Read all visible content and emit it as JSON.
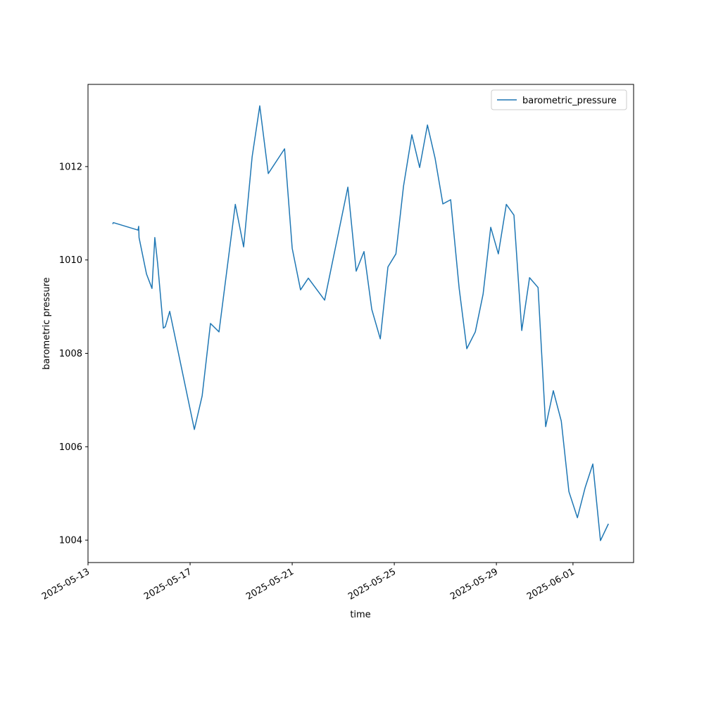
{
  "chart_data": {
    "type": "line",
    "xlabel": "time",
    "ylabel": "barometric pressure",
    "legend": "upper right",
    "grid": false,
    "x": [
      "2025-05-13 23:10",
      "2025-05-13 23:50",
      "2025-05-14 23:00",
      "2025-05-14 23:40",
      "2025-05-15 00:00",
      "2025-05-15 07:00",
      "2025-05-15 12:10",
      "2025-05-15 14:50",
      "2025-05-15 17:30",
      "2025-05-15 22:50",
      "2025-05-16 00:40",
      "2025-05-16 04:50",
      "2025-05-17 04:00",
      "2025-05-17 11:20",
      "2025-05-17 19:10",
      "2025-05-18 03:10",
      "2025-05-18 18:30",
      "2025-05-19 02:20",
      "2025-05-19 10:20",
      "2025-05-19 17:30",
      "2025-05-20 01:30",
      "2025-05-20 16:50",
      "2025-05-21 00:00",
      "2025-05-21 07:50",
      "2025-05-21 15:10",
      "2025-05-22 06:30",
      "2025-05-23 04:20",
      "2025-05-23 12:10",
      "2025-05-23 19:30",
      "2025-05-24 02:50",
      "2025-05-24 10:50",
      "2025-05-24 18:00",
      "2025-05-25 01:30",
      "2025-05-25 08:40",
      "2025-05-25 16:30",
      "2025-05-25 23:50",
      "2025-05-26 07:10",
      "2025-05-26 14:20",
      "2025-05-26 21:40",
      "2025-05-27 05:00",
      "2025-05-27 13:00",
      "2025-05-27 20:10",
      "2025-05-28 04:10",
      "2025-05-28 11:30",
      "2025-05-28 18:40",
      "2025-05-29 01:50",
      "2025-05-29 09:20",
      "2025-05-29 16:30",
      "2025-05-29 23:50",
      "2025-05-30 07:10",
      "2025-05-30 15:10",
      "2025-05-30 22:20",
      "2025-05-31 05:30",
      "2025-05-31 13:00",
      "2025-05-31 20:10",
      "2025-06-01 04:10",
      "2025-06-01 11:30",
      "2025-06-01 18:40",
      "2025-06-02 01:50",
      "2025-06-02 09:20"
    ],
    "series": [
      {
        "name": "barometric_pressure",
        "color": "#1f77b4",
        "values": [
          1010.77,
          1010.8,
          1010.64,
          1010.72,
          1010.48,
          1009.7,
          1009.39,
          1010.48,
          1009.92,
          1008.54,
          1008.57,
          1008.9,
          1006.37,
          1007.09,
          1008.64,
          1008.46,
          1011.19,
          1010.28,
          1012.21,
          1013.3,
          1011.85,
          1012.38,
          1010.25,
          1009.36,
          1009.61,
          1009.14,
          1011.56,
          1009.76,
          1010.18,
          1008.94,
          1008.31,
          1009.85,
          1010.13,
          1011.58,
          1012.68,
          1011.98,
          1012.89,
          1012.18,
          1011.2,
          1011.29,
          1009.39,
          1008.1,
          1008.46,
          1009.27,
          1010.7,
          1010.13,
          1011.19,
          1010.96,
          1008.49,
          1009.62,
          1009.41,
          1006.43,
          1007.2,
          1006.55,
          1005.04,
          1004.48,
          1005.13,
          1005.63,
          1003.99,
          1004.35
        ]
      }
    ],
    "xlim": [
      "2025-05-13 00:00",
      "2025-06-03 09:00"
    ],
    "xticks": [
      "2025-05-13",
      "2025-05-17",
      "2025-05-21",
      "2025-05-25",
      "2025-05-29",
      "2025-06-01"
    ],
    "ylim": [
      1003.52,
      1013.76
    ],
    "yticks": [
      1004,
      1006,
      1008,
      1010,
      1012
    ]
  }
}
